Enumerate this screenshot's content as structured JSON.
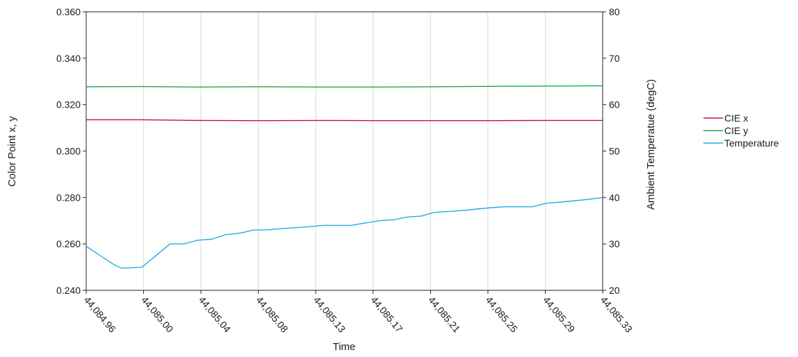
{
  "chart_data": {
    "type": "line",
    "xlabel": "Time",
    "ylabel_left": "Color Point x, y",
    "ylabel_right": "Ambient Temperatue (degC)",
    "x_ticks": [
      "44,084.96",
      "44,085.00",
      "44,085.04",
      "44,085.08",
      "44,085.13",
      "44,085.17",
      "44,085.21",
      "44,085.25",
      "44,085.29",
      "44,085.33"
    ],
    "x_range": [
      44084.96,
      44085.33
    ],
    "ylim_left": [
      0.24,
      0.36
    ],
    "yticks_left": [
      "0.240",
      "0.260",
      "0.280",
      "0.300",
      "0.320",
      "0.340",
      "0.360"
    ],
    "ylim_right": [
      20,
      80
    ],
    "yticks_right": [
      "20",
      "30",
      "40",
      "50",
      "60",
      "70",
      "80"
    ],
    "grid": "vertical",
    "legend_position": "right",
    "series": [
      {
        "name": "CIE x",
        "axis": "left",
        "color": "#c8102e",
        "x": [
          44084.96,
          44085.0,
          44085.04,
          44085.08,
          44085.13,
          44085.17,
          44085.21,
          44085.25,
          44085.29,
          44085.33
        ],
        "values": [
          0.3135,
          0.3135,
          0.3132,
          0.3131,
          0.3132,
          0.3131,
          0.3131,
          0.3131,
          0.3132,
          0.3132
        ]
      },
      {
        "name": "CIE y",
        "axis": "left",
        "color": "#1aa64a",
        "x": [
          44084.96,
          44085.0,
          44085.04,
          44085.08,
          44085.13,
          44085.17,
          44085.21,
          44085.25,
          44085.29,
          44085.33
        ],
        "values": [
          0.3277,
          0.3278,
          0.3276,
          0.3277,
          0.3276,
          0.3276,
          0.3277,
          0.3279,
          0.328,
          0.3281
        ]
      },
      {
        "name": "Temperature",
        "axis": "right",
        "color": "#29abe2",
        "x": [
          44084.96,
          44084.97,
          44084.98,
          44084.985,
          44084.99,
          44085.0,
          44085.01,
          44085.02,
          44085.03,
          44085.04,
          44085.05,
          44085.06,
          44085.07,
          44085.08,
          44085.09,
          44085.1,
          44085.11,
          44085.12,
          44085.13,
          44085.14,
          44085.15,
          44085.16,
          44085.17,
          44085.18,
          44085.19,
          44085.2,
          44085.21,
          44085.22,
          44085.23,
          44085.24,
          44085.25,
          44085.26,
          44085.27,
          44085.28,
          44085.29,
          44085.3,
          44085.31,
          44085.32,
          44085.33
        ],
        "values": [
          29.5,
          27.5,
          25.5,
          24.8,
          24.8,
          25.0,
          27.5,
          30.0,
          30.0,
          30.8,
          31.0,
          32.0,
          32.3,
          33.0,
          33.0,
          33.3,
          33.5,
          33.7,
          34.0,
          34.0,
          34.0,
          34.5,
          35.0,
          35.2,
          35.8,
          36.0,
          36.8,
          37.0,
          37.2,
          37.5,
          37.8,
          38.0,
          38.0,
          38.0,
          38.8,
          39.0,
          39.3,
          39.6,
          40.0
        ]
      }
    ]
  }
}
